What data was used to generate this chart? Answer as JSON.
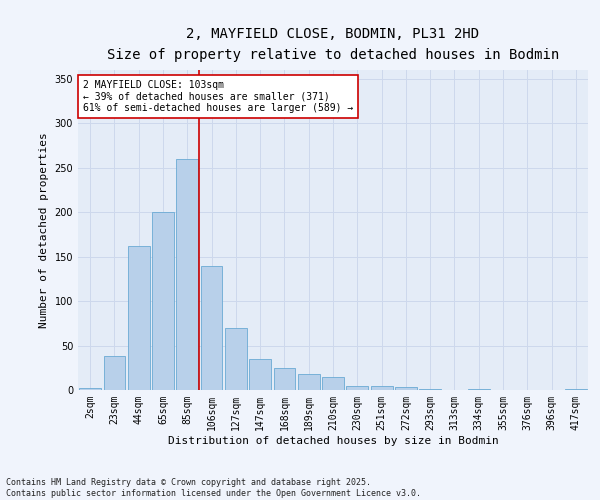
{
  "title_line1": "2, MAYFIELD CLOSE, BODMIN, PL31 2HD",
  "title_line2": "Size of property relative to detached houses in Bodmin",
  "xlabel": "Distribution of detached houses by size in Bodmin",
  "ylabel": "Number of detached properties",
  "categories": [
    "2sqm",
    "23sqm",
    "44sqm",
    "65sqm",
    "85sqm",
    "106sqm",
    "127sqm",
    "147sqm",
    "168sqm",
    "189sqm",
    "210sqm",
    "230sqm",
    "251sqm",
    "272sqm",
    "293sqm",
    "313sqm",
    "334sqm",
    "355sqm",
    "376sqm",
    "396sqm",
    "417sqm"
  ],
  "values": [
    2,
    38,
    162,
    200,
    260,
    140,
    70,
    35,
    25,
    18,
    15,
    5,
    5,
    3,
    1,
    0,
    1,
    0,
    0,
    0,
    1
  ],
  "bar_color": "#b8d0ea",
  "bar_edge_color": "#6aaad4",
  "vline_x_index": 4.5,
  "vline_color": "#cc0000",
  "annotation_text": "2 MAYFIELD CLOSE: 103sqm\n← 39% of detached houses are smaller (371)\n61% of semi-detached houses are larger (589) →",
  "annotation_box_color": "#ffffff",
  "annotation_box_edge": "#cc0000",
  "ylim": [
    0,
    360
  ],
  "yticks": [
    0,
    50,
    100,
    150,
    200,
    250,
    300,
    350
  ],
  "grid_color": "#cdd8ec",
  "bg_color": "#e4ecf7",
  "fig_bg_color": "#f0f4fc",
  "footer_text": "Contains HM Land Registry data © Crown copyright and database right 2025.\nContains public sector information licensed under the Open Government Licence v3.0.",
  "title1_fontsize": 10,
  "title2_fontsize": 9,
  "ylabel_fontsize": 8,
  "xlabel_fontsize": 8,
  "tick_fontsize": 7,
  "annot_fontsize": 7,
  "footer_fontsize": 6
}
